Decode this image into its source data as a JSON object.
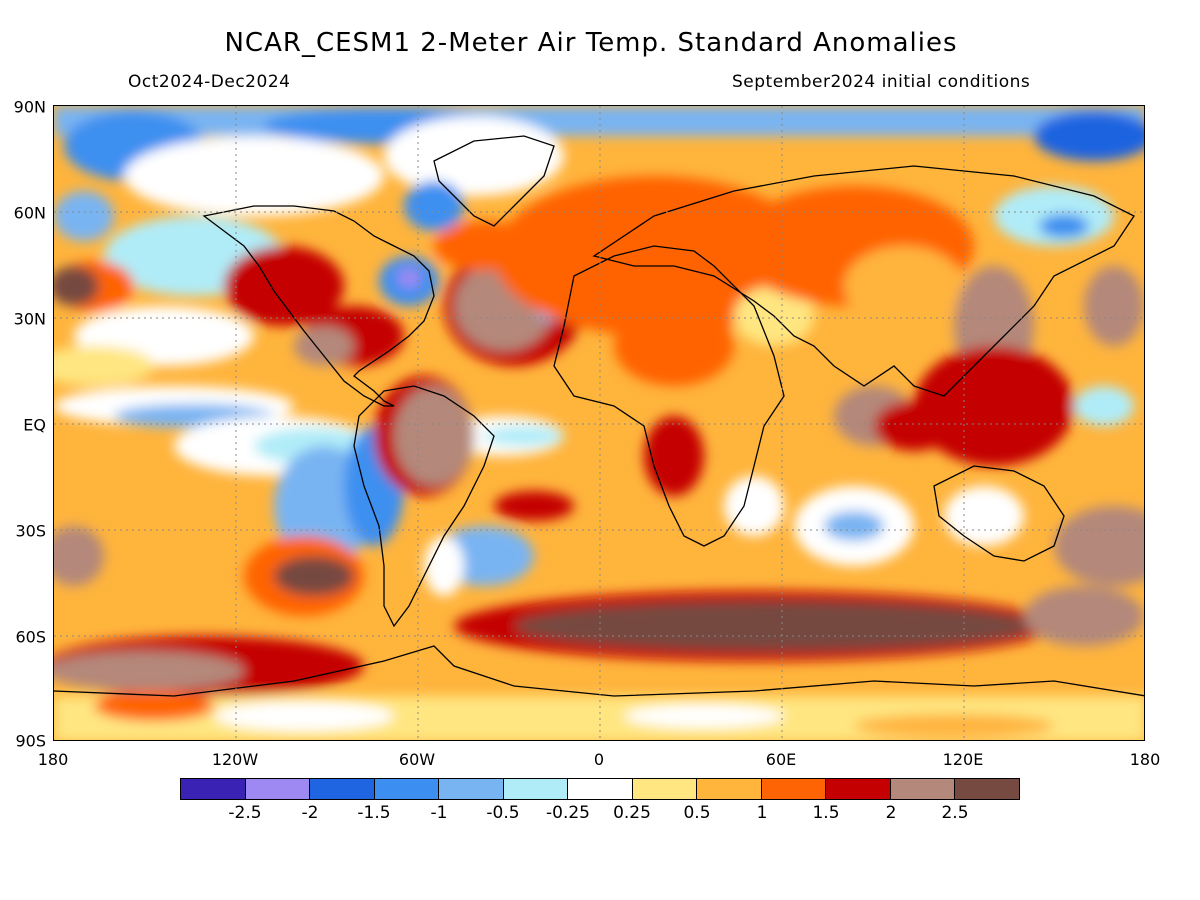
{
  "title": "NCAR_CESM1 2-Meter Air Temp. Standard Anomalies",
  "period": "Oct2024-Dec2024",
  "initial_conditions": "September2024 initial conditions",
  "lat_labels": [
    "90N",
    "60N",
    "30N",
    "EQ",
    "30S",
    "60S",
    "90S"
  ],
  "lon_labels": [
    "180",
    "120W",
    "60W",
    "0",
    "60E",
    "120E",
    "180"
  ],
  "colorbar": {
    "colors": [
      "#3a22b4",
      "#9e89f2",
      "#1f64e0",
      "#3c8ff0",
      "#79b4f2",
      "#b0ecf8",
      "#ffffff",
      "#ffe681",
      "#ffb43c",
      "#ff6404",
      "#c40000",
      "#b4887a",
      "#764a40"
    ],
    "labels": [
      "-2.5",
      "-2",
      "-1.5",
      "-1",
      "-0.5",
      "-0.25",
      "0.25",
      "0.5",
      "1",
      "1.5",
      "2",
      "2.5"
    ]
  },
  "colors": {
    "strong_warm": "#764a40",
    "warm2": "#b4887a",
    "warm15": "#c40000",
    "warm1": "#ff6404",
    "warm05": "#ffb43c",
    "warm025": "#ffe681",
    "cool025": "#b0ecf8",
    "cool05": "#79b4f2",
    "cool1": "#3c8ff0",
    "cool15": "#1f64e0",
    "cool2": "#9e89f2",
    "cool25": "#3a22b4"
  }
}
